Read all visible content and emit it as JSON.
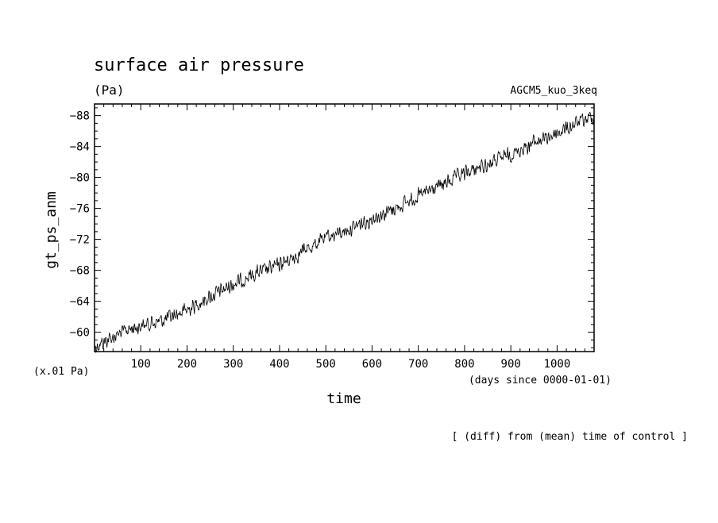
{
  "chart_data": {
    "type": "line",
    "title": "surface air pressure",
    "units": "(Pa)",
    "experiment": "AGCM5_kuo_3keq",
    "ylabel": "gt_ps_anm",
    "yunit_note": "(x.01 Pa)",
    "xlabel": "time",
    "xunit_note": "(days since 0000-01-01)",
    "footnote": "[ (diff) from (mean) time of control ]",
    "xlim": [
      0,
      1080
    ],
    "ylim": [
      -57.5,
      -89.5
    ],
    "x_ticks": [
      100,
      200,
      300,
      400,
      500,
      600,
      700,
      800,
      900,
      1000
    ],
    "y_ticks": [
      -60,
      -64,
      -68,
      -72,
      -76,
      -80,
      -84,
      -88
    ],
    "grid": false,
    "series": [
      {
        "x": [
          0,
          25,
          50,
          75,
          100,
          150,
          200,
          250,
          300,
          350,
          400,
          450,
          500,
          550,
          600,
          650,
          700,
          750,
          800,
          850,
          900,
          950,
          1000,
          1050,
          1080
        ],
        "values": [
          -58.1,
          -58.9,
          -59.7,
          -60.4,
          -60.8,
          -61.6,
          -62.9,
          -64.6,
          -66.2,
          -67.6,
          -68.7,
          -70.4,
          -72.2,
          -73.3,
          -74.7,
          -76.0,
          -77.6,
          -79.0,
          -80.5,
          -81.7,
          -83.0,
          -84.5,
          -85.7,
          -87.2,
          -88.0
        ],
        "noise_amplitude": 1.2
      }
    ]
  }
}
